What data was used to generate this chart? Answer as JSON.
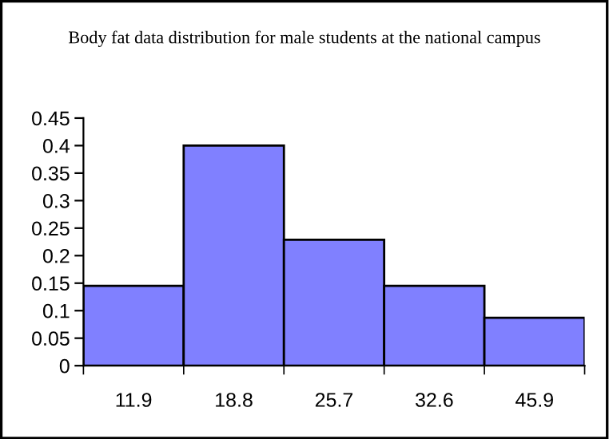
{
  "chart_data": {
    "type": "bar",
    "title": "Body fat data distribution for male students at the national campus",
    "categories": [
      "11.9",
      "18.8",
      "25.7",
      "32.6",
      "45.9"
    ],
    "values": [
      0.145,
      0.4,
      0.229,
      0.145,
      0.087
    ],
    "color": "#8080ff",
    "ylim": [
      0,
      0.45
    ],
    "yticks": [
      0,
      0.05,
      0.1,
      0.15,
      0.2,
      0.25,
      0.3,
      0.35,
      0.4,
      0.45
    ],
    "grid": false,
    "legend": false
  }
}
